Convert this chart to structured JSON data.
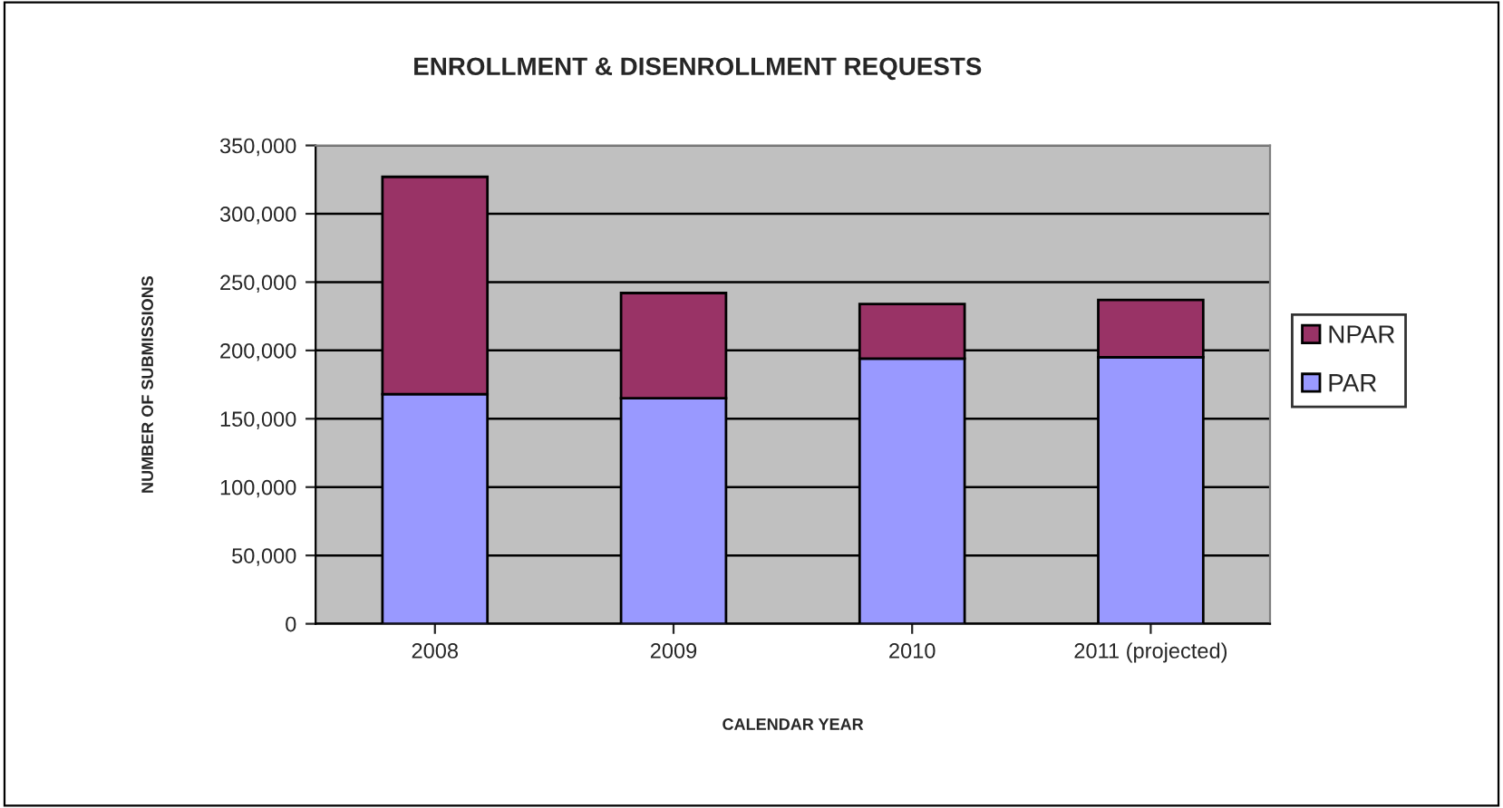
{
  "chart_data": {
    "type": "bar",
    "title": "ENROLLMENT & DISENROLLMENT REQUESTS",
    "xlabel": "CALENDAR YEAR",
    "ylabel": "NUMBER OF SUBMISSIONS",
    "categories": [
      "2008",
      "2009",
      "2010",
      "2011 (projected)"
    ],
    "stacked": true,
    "series": [
      {
        "name": "PAR",
        "color": "#9999ff",
        "values": [
          168000,
          165000,
          194000,
          195000
        ]
      },
      {
        "name": "NPAR",
        "color": "#993366",
        "values": [
          159000,
          77000,
          40000,
          42000
        ]
      }
    ],
    "ylim": [
      0,
      350000
    ],
    "yticks": [
      {
        "value": 0,
        "label": "0"
      },
      {
        "value": 50000,
        "label": "50,000"
      },
      {
        "value": 100000,
        "label": "100,000"
      },
      {
        "value": 150000,
        "label": "150,000"
      },
      {
        "value": 200000,
        "label": "200,000"
      },
      {
        "value": 250000,
        "label": "250,000"
      },
      {
        "value": 300000,
        "label": "300,000"
      },
      {
        "value": 350000,
        "label": "350,000"
      }
    ],
    "grid": "y",
    "legend": "right"
  }
}
